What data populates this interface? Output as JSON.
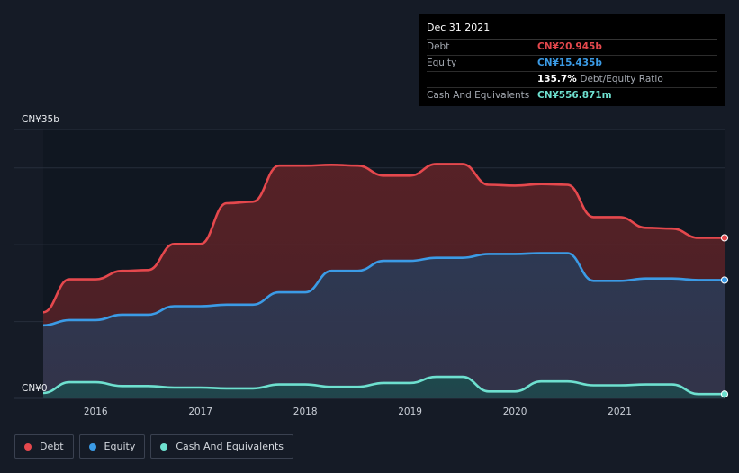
{
  "tooltip": {
    "date": "Dec 31 2021",
    "rows": [
      {
        "label": "Debt",
        "value": "CN¥20.945b",
        "color": "#e5484d"
      },
      {
        "label": "Equity",
        "value": "CN¥15.435b",
        "color": "#3b9be6"
      },
      {
        "label": "",
        "value": "135.7%",
        "suffix": "Debt/Equity Ratio",
        "color": "#ffffff"
      },
      {
        "label": "Cash And Equivalents",
        "value": "CN¥556.871m",
        "color": "#6ee0cf"
      }
    ]
  },
  "legend": [
    {
      "label": "Debt",
      "color": "#e5484d"
    },
    {
      "label": "Equity",
      "color": "#3b9be6"
    },
    {
      "label": "Cash And Equivalents",
      "color": "#6ee0cf"
    }
  ],
  "chart_data": {
    "type": "area",
    "title": "",
    "xlabel": "",
    "ylabel": "",
    "y_unit": "CN¥ billions",
    "ylim": [
      0,
      35
    ],
    "xlim": [
      2015.5,
      2022.0
    ],
    "y_tick_labels": [
      {
        "value": 35,
        "label": "CN¥35b"
      },
      {
        "value": 0,
        "label": "CN¥0"
      }
    ],
    "x_tick_labels": [
      {
        "value": 2016,
        "label": "2016"
      },
      {
        "value": 2017,
        "label": "2017"
      },
      {
        "value": 2018,
        "label": "2018"
      },
      {
        "value": 2019,
        "label": "2019"
      },
      {
        "value": 2020,
        "label": "2020"
      },
      {
        "value": 2021,
        "label": "2021"
      }
    ],
    "grid": true,
    "legend_position": "bottom-left",
    "highlight_x": 2022.0,
    "series": [
      {
        "name": "Debt",
        "color": "#e5484d",
        "fill": "#5a2227",
        "x": [
          2015.5,
          2015.75,
          2016.0,
          2016.25,
          2016.5,
          2016.75,
          2017.0,
          2017.25,
          2017.5,
          2017.75,
          2018.0,
          2018.25,
          2018.5,
          2018.75,
          2019.0,
          2019.25,
          2019.5,
          2019.75,
          2020.0,
          2020.25,
          2020.5,
          2020.75,
          2021.0,
          2021.25,
          2021.5,
          2021.75,
          2022.0
        ],
        "y": [
          11.2,
          15.5,
          15.5,
          16.6,
          16.7,
          20.1,
          20.1,
          25.4,
          25.6,
          30.3,
          30.3,
          30.4,
          30.3,
          29.0,
          29.0,
          30.5,
          30.5,
          27.8,
          27.7,
          27.9,
          27.8,
          23.6,
          23.6,
          22.2,
          22.1,
          20.9,
          20.9
        ]
      },
      {
        "name": "Equity",
        "color": "#3b9be6",
        "fill": "#2b3a55",
        "x": [
          2015.5,
          2015.75,
          2016.0,
          2016.25,
          2016.5,
          2016.75,
          2017.0,
          2017.25,
          2017.5,
          2017.75,
          2018.0,
          2018.25,
          2018.5,
          2018.75,
          2019.0,
          2019.25,
          2019.5,
          2019.75,
          2020.0,
          2020.25,
          2020.5,
          2020.75,
          2021.0,
          2021.25,
          2021.5,
          2021.75,
          2022.0
        ],
        "y": [
          9.5,
          10.2,
          10.2,
          10.9,
          10.9,
          12.0,
          12.0,
          12.2,
          12.2,
          13.8,
          13.8,
          16.6,
          16.6,
          17.9,
          17.9,
          18.3,
          18.3,
          18.8,
          18.8,
          18.9,
          18.9,
          15.3,
          15.3,
          15.6,
          15.6,
          15.4,
          15.4
        ]
      },
      {
        "name": "Cash And Equivalents",
        "color": "#6ee0cf",
        "fill": "#1c4a4c",
        "x": [
          2015.5,
          2015.75,
          2016.0,
          2016.25,
          2016.5,
          2016.75,
          2017.0,
          2017.25,
          2017.5,
          2017.75,
          2018.0,
          2018.25,
          2018.5,
          2018.75,
          2019.0,
          2019.25,
          2019.5,
          2019.75,
          2020.0,
          2020.25,
          2020.5,
          2020.75,
          2021.0,
          2021.25,
          2021.5,
          2021.75,
          2022.0
        ],
        "y": [
          0.7,
          2.1,
          2.1,
          1.6,
          1.6,
          1.4,
          1.4,
          1.3,
          1.3,
          1.8,
          1.8,
          1.5,
          1.5,
          2.0,
          2.0,
          2.8,
          2.8,
          0.9,
          0.9,
          2.2,
          2.2,
          1.7,
          1.7,
          1.8,
          1.8,
          0.56,
          0.56
        ]
      }
    ]
  }
}
